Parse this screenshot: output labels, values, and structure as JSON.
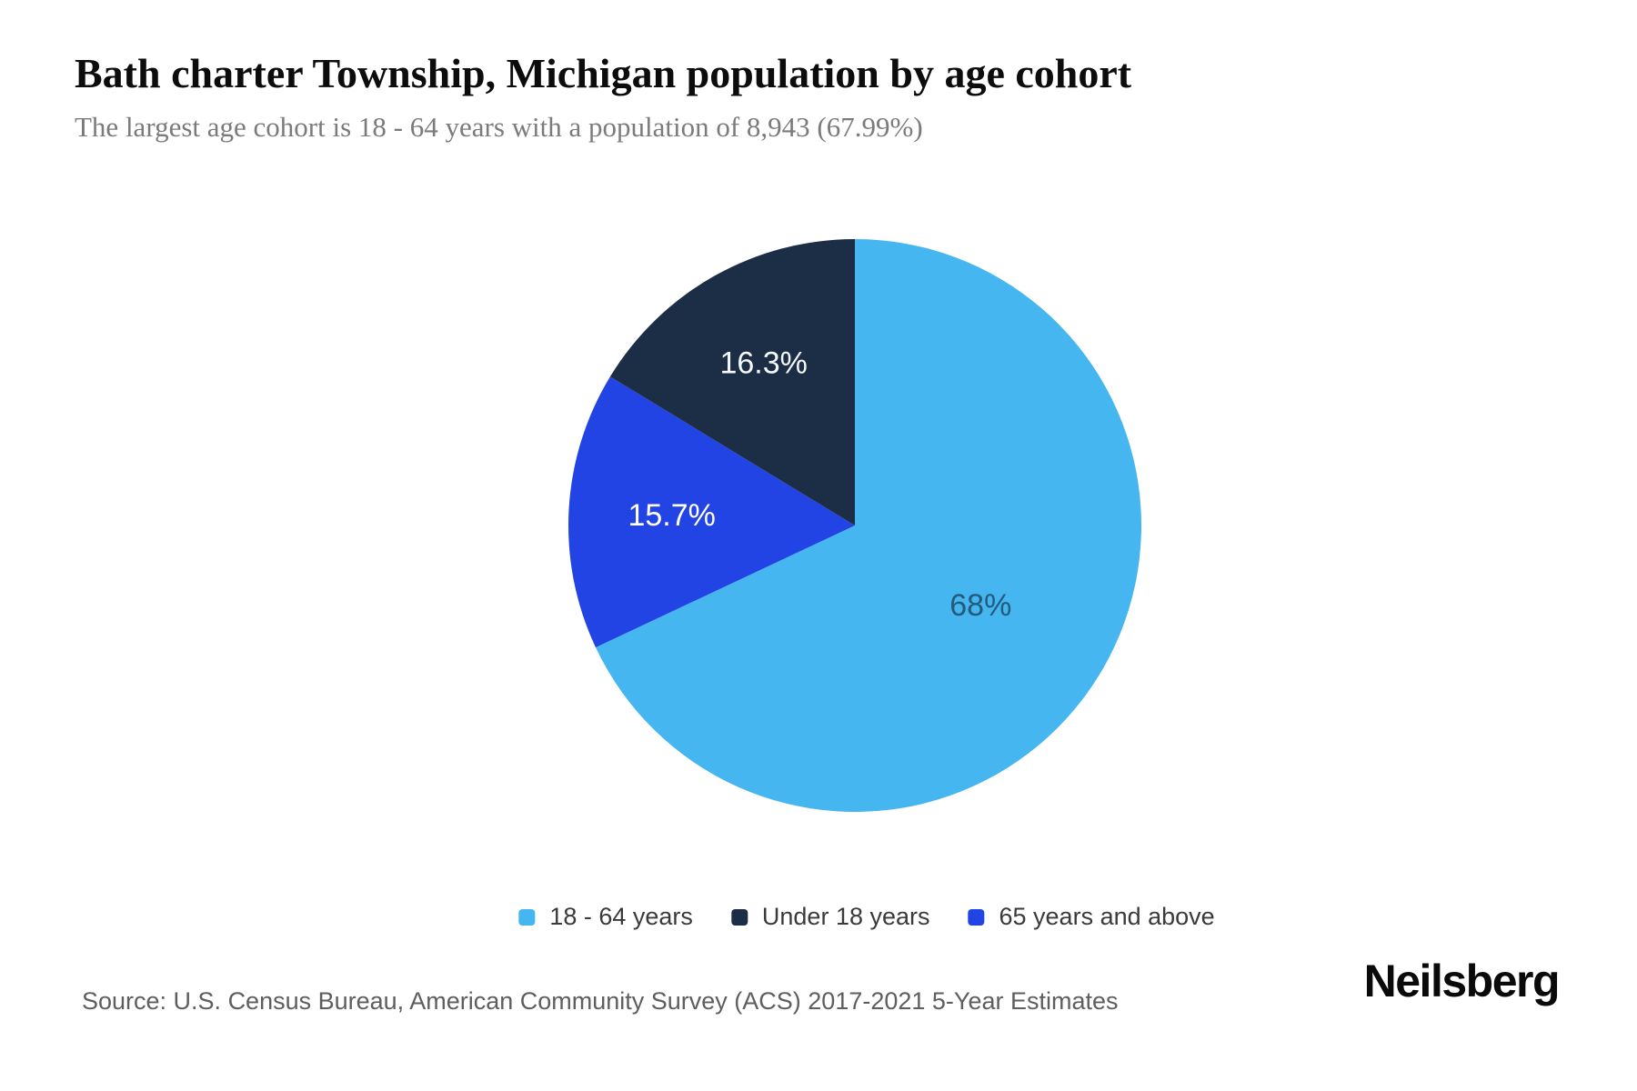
{
  "header": {
    "title": "Bath charter Township, Michigan population by age cohort",
    "subtitle": "The largest age cohort is 18 - 64 years with a population of 8,943 (67.99%)"
  },
  "chart_data": {
    "type": "pie",
    "title": "Bath charter Township, Michigan population by age cohort",
    "slices": [
      {
        "label": "18 - 64 years",
        "value": 68,
        "display": "68%",
        "color": "#45b6f0",
        "label_color": "#245a7c"
      },
      {
        "label": "65 years and above",
        "value": 15.7,
        "display": "15.7%",
        "color": "#2244e4",
        "label_color": "#ffffff"
      },
      {
        "label": "Under 18 years",
        "value": 16.3,
        "display": "16.3%",
        "color": "#1c2e45",
        "label_color": "#f5f8fa"
      }
    ],
    "legend_order": [
      0,
      2,
      1
    ],
    "layout": {
      "start_angle_deg": 0,
      "direction": "clockwise",
      "label_radius_fraction": [
        0.52,
        0.64,
        0.65
      ],
      "legend_position": "bottom"
    }
  },
  "footer": {
    "source": "Source: U.S. Census Bureau, American Community Survey (ACS) 2017-2021 5-Year Estimates",
    "brand": "Neilsberg"
  }
}
